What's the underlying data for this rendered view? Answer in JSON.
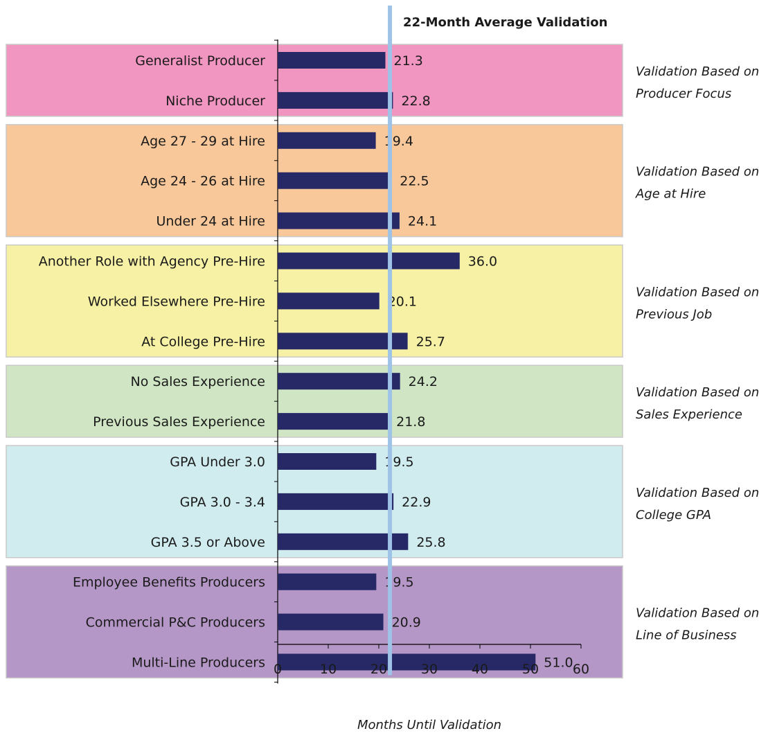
{
  "chart_data": {
    "type": "bar",
    "orientation": "horizontal",
    "xlabel": "Months Until Validation",
    "xlim": [
      0,
      60
    ],
    "xticks": [
      0,
      10,
      20,
      30,
      40,
      50,
      60
    ],
    "reference_line": {
      "label": "22-Month Average Validation",
      "value": 22.2,
      "color": "#9ec3e6"
    },
    "bar_color": "#262966",
    "groups": [
      {
        "label": [
          "Validation Based on",
          "Producer Focus"
        ],
        "color": "#f195c1",
        "bars": [
          {
            "category": "Generalist Producer",
            "value": 21.3,
            "value_label": "21.3"
          },
          {
            "category": "Niche Producer",
            "value": 22.8,
            "value_label": "22.8"
          }
        ]
      },
      {
        "label": [
          "Validation Based on",
          "Age at Hire"
        ],
        "color": "#f8c89a",
        "bars": [
          {
            "category": "Age 27 - 29 at Hire",
            "value": 19.4,
            "value_label": "19.4"
          },
          {
            "category": "Age 24 - 26 at Hire",
            "value": 22.5,
            "value_label": "22.5"
          },
          {
            "category": "Under 24 at Hire",
            "value": 24.1,
            "value_label": "24.1"
          }
        ]
      },
      {
        "label": [
          "Validation Based on",
          "Previous Job"
        ],
        "color": "#f6f1a4",
        "bars": [
          {
            "category": "Another Role with Agency Pre-Hire",
            "value": 36.0,
            "value_label": "36.0"
          },
          {
            "category": "Worked Elsewhere Pre-Hire",
            "value": 20.1,
            "value_label": "20.1"
          },
          {
            "category": "At College Pre-Hire",
            "value": 25.7,
            "value_label": "25.7"
          }
        ]
      },
      {
        "label": [
          "Validation Based on",
          "Sales Experience"
        ],
        "color": "#cfe5c4",
        "bars": [
          {
            "category": "No Sales Experience",
            "value": 24.2,
            "value_label": "24.2"
          },
          {
            "category": "Previous Sales Experience",
            "value": 21.8,
            "value_label": "21.8"
          }
        ]
      },
      {
        "label": [
          "Validation Based on",
          "College GPA"
        ],
        "color": "#d0ecef",
        "bars": [
          {
            "category": "GPA Under 3.0",
            "value": 19.5,
            "value_label": "19.5"
          },
          {
            "category": "GPA 3.0 - 3.4",
            "value": 22.9,
            "value_label": "22.9"
          },
          {
            "category": "GPA 3.5 or Above",
            "value": 25.8,
            "value_label": "25.8"
          }
        ]
      },
      {
        "label": [
          "Validation Based on",
          "Line of Business"
        ],
        "color": "#b597c7",
        "bars": [
          {
            "category": "Employee Benefits Producers",
            "value": 19.5,
            "value_label": "19.5"
          },
          {
            "category": "Commercial P&C Producers",
            "value": 20.9,
            "value_label": "20.9"
          },
          {
            "category": "Multi-Line Producers",
            "value": 51.0,
            "value_label": "51.0"
          }
        ]
      }
    ]
  }
}
